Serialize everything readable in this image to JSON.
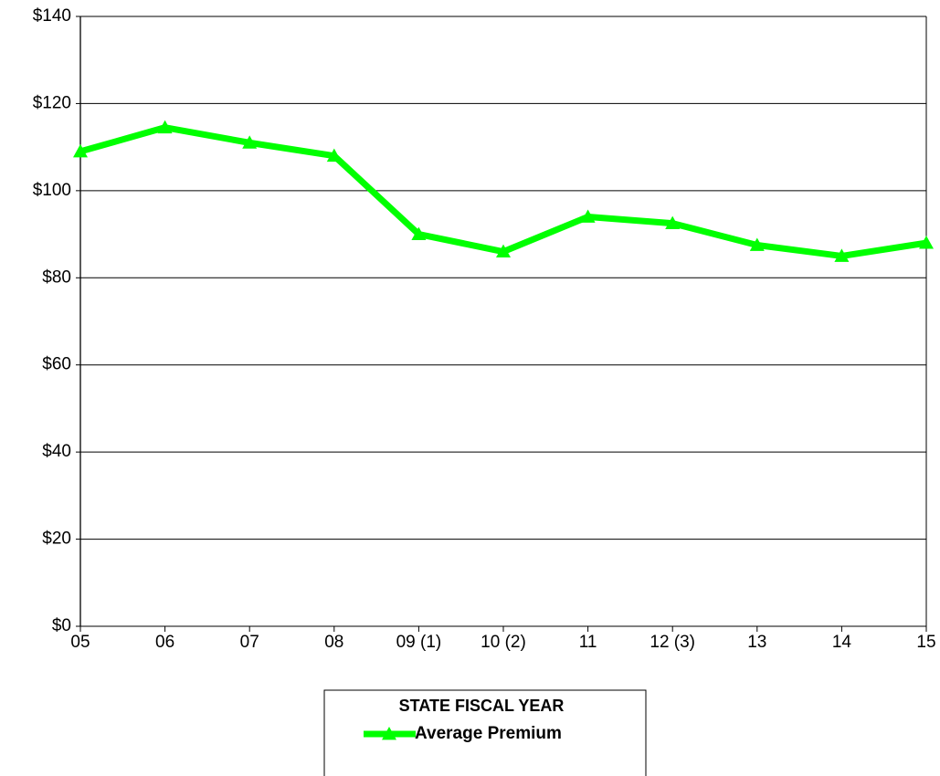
{
  "chart_data": {
    "type": "line",
    "x_label": "STATE FISCAL YEAR",
    "categories": [
      "05",
      "06",
      "07",
      "08",
      "09 (1)",
      "10 (2)",
      "11",
      "12 (3)",
      "13",
      "14",
      "15"
    ],
    "series": [
      {
        "name": "Average Premium",
        "color": "#00ff00",
        "values": [
          109,
          114.5,
          111,
          108,
          90,
          86,
          94,
          92.5,
          87.5,
          85,
          88
        ]
      }
    ],
    "ylim": [
      0,
      140
    ],
    "yticks": [
      {
        "value": 0,
        "label": "$0"
      },
      {
        "value": 20,
        "label": "$20"
      },
      {
        "value": 40,
        "label": "$40"
      },
      {
        "value": 60,
        "label": "$60"
      },
      {
        "value": 80,
        "label": "$80"
      },
      {
        "value": 100,
        "label": "$100"
      },
      {
        "value": 120,
        "label": "$120"
      },
      {
        "value": 140,
        "label": "$140"
      }
    ],
    "grid": true,
    "legend": "bottom",
    "marker": "triangle"
  }
}
